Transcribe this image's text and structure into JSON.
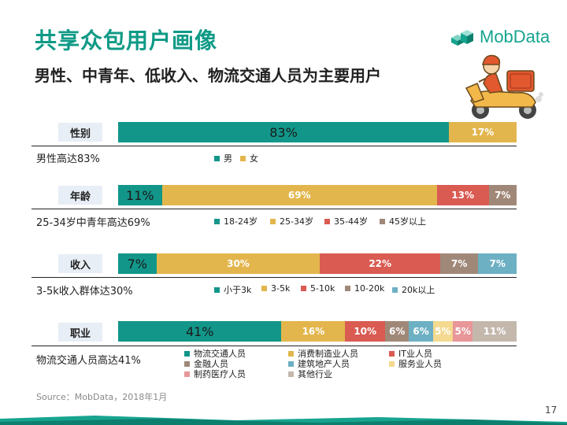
{
  "title": "共享众包用户画像",
  "subtitle": "男性、中青年、低收入、物流交通人员为主要用户",
  "logo": {
    "text": "MobData",
    "icon": "mobdata-blocks-icon"
  },
  "illustration": "courier-on-scooter",
  "source": "Source：MobData，2018年1月",
  "page_number": "17",
  "colors": {
    "teal": "#12968a",
    "yellow": "#e3b64d",
    "red": "#d95b52",
    "brown": "#a08878",
    "blue": "#6db0c3",
    "lightyellow": "#f4d990",
    "pink": "#e89698",
    "gray": "#c4b8ad",
    "label_bg": "#e8eef5"
  },
  "chart_data": [
    {
      "type": "bar",
      "stacked": true,
      "orientation": "horizontal",
      "section": "性别",
      "note": "男性高达83%",
      "series": [
        {
          "name": "男",
          "value": 83,
          "label": "83%"
        },
        {
          "name": "女",
          "value": 17,
          "label": "17%"
        }
      ]
    },
    {
      "type": "bar",
      "stacked": true,
      "orientation": "horizontal",
      "section": "年龄",
      "note": "25-34岁中青年高达69%",
      "series": [
        {
          "name": "18-24岁",
          "value": 11,
          "label": "11%"
        },
        {
          "name": "25-34岁",
          "value": 69,
          "label": "69%"
        },
        {
          "name": "35-44岁",
          "value": 13,
          "label": "13%"
        },
        {
          "name": "45岁以上",
          "value": 7,
          "label": "7%"
        }
      ]
    },
    {
      "type": "bar",
      "stacked": true,
      "orientation": "horizontal",
      "section": "收入",
      "note": "3-5k收入群体达30%",
      "series": [
        {
          "name": "小于3k",
          "value": 7,
          "label": "7%"
        },
        {
          "name": "3-5k",
          "value": 30,
          "label": "30%"
        },
        {
          "name": "5-10k",
          "value": 22,
          "label": "22%"
        },
        {
          "name": "10-20k",
          "value": 7,
          "label": "7%"
        },
        {
          "name": "20k以上",
          "value": 7,
          "label": "7%"
        }
      ]
    },
    {
      "type": "bar",
      "stacked": true,
      "orientation": "horizontal",
      "section": "职业",
      "note": "物流交通人员高达41%",
      "series": [
        {
          "name": "物流交通人员",
          "value": 41,
          "label": "41%"
        },
        {
          "name": "消费制造业人员",
          "value": 16,
          "label": "16%"
        },
        {
          "name": "IT业人员",
          "value": 10,
          "label": "10%"
        },
        {
          "name": "金融人员",
          "value": 6,
          "label": "6%"
        },
        {
          "name": "建筑地产人员",
          "value": 6,
          "label": "6%"
        },
        {
          "name": "服务业人员",
          "value": 5,
          "label": "5%"
        },
        {
          "name": "制药医疗人员",
          "value": 5,
          "label": "5%"
        },
        {
          "name": "其他行业",
          "value": 11,
          "label": "11%"
        }
      ]
    }
  ]
}
